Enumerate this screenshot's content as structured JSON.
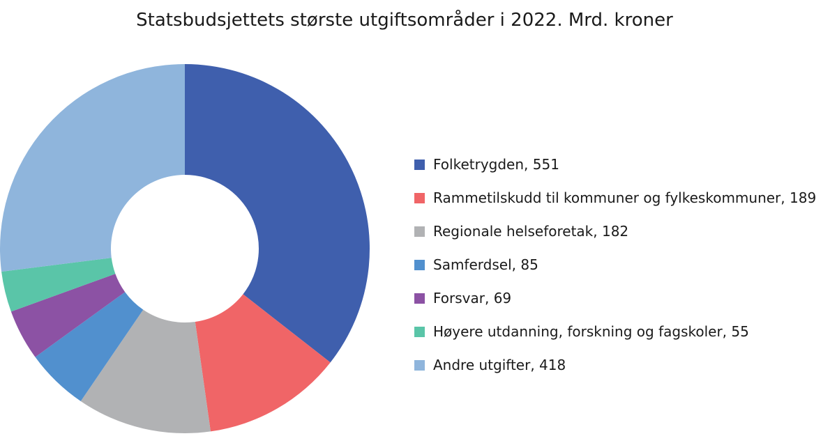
{
  "chart_data": {
    "type": "pie",
    "variant": "donut",
    "title": "Statsbudsjettets største utgiftsområder i 2022. Mrd. kroner",
    "legend_position": "right",
    "categories": [
      "Folketrygden",
      "Rammetilskudd til kommuner og fylkeskommuner",
      "Regionale helseforetak",
      "Samferdsel",
      "Forsvar",
      "Høyere utdanning, forskning og fagskoler",
      "Andre utgifter"
    ],
    "values": [
      551,
      189,
      182,
      85,
      69,
      55,
      418
    ],
    "legend_labels": [
      "Folketrygden, 551",
      "Rammetilskudd til kommuner og fylkeskommuner, 189",
      "Regionale helseforetak, 182",
      "Samferdsel, 85",
      "Forsvar, 69",
      "Høyere utdanning, forskning og fagskoler, 55",
      "Andre utgifter, 418"
    ],
    "colors": [
      "#3f5fad",
      "#f06567",
      "#b1b2b4",
      "#5190ce",
      "#8c52a4",
      "#5ac5a8",
      "#8fb5dc"
    ]
  }
}
